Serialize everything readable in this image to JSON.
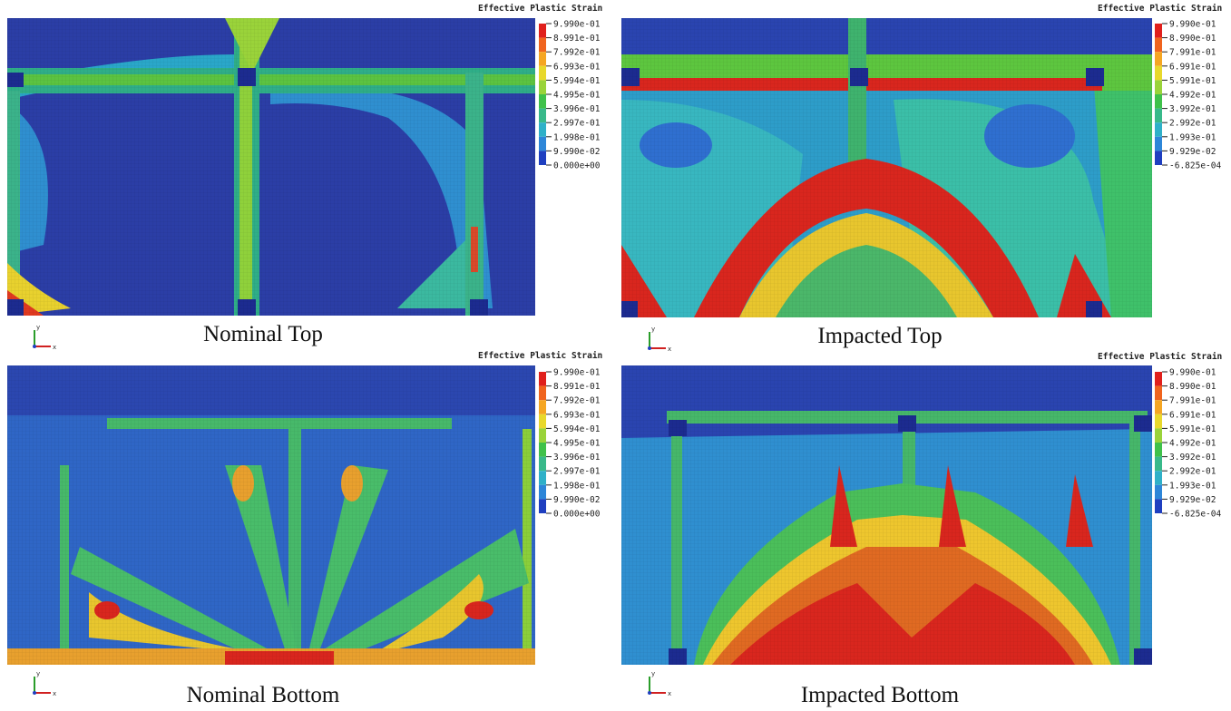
{
  "panels": [
    {
      "caption": "Nominal Top",
      "legend_title": "Effective Plastic Strain",
      "legend_labels": [
        "9.990e-01",
        "8.991e-01",
        "7.992e-01",
        "6.993e-01",
        "5.994e-01",
        "4.995e-01",
        "3.996e-01",
        "2.997e-01",
        "1.998e-01",
        "9.990e-02",
        "0.000e+00"
      ],
      "axis_labels": [
        "y",
        "x"
      ]
    },
    {
      "caption": "Impacted Top",
      "legend_title": "Effective Plastic Strain",
      "legend_labels": [
        "9.990e-01",
        "8.990e-01",
        "7.991e-01",
        "6.991e-01",
        "5.991e-01",
        "4.992e-01",
        "3.992e-01",
        "2.992e-01",
        "1.993e-01",
        "9.929e-02",
        "-6.825e-04"
      ],
      "axis_labels": [
        "y",
        "x"
      ]
    },
    {
      "caption": "Nominal Bottom",
      "legend_title": "Effective Plastic Strain",
      "legend_labels": [
        "9.990e-01",
        "8.991e-01",
        "7.992e-01",
        "6.993e-01",
        "5.994e-01",
        "4.995e-01",
        "3.996e-01",
        "2.997e-01",
        "1.998e-01",
        "9.990e-02",
        "0.000e+00"
      ],
      "axis_labels": [
        "y",
        "x"
      ]
    },
    {
      "caption": "Impacted Bottom",
      "legend_title": "Effective Plastic Strain",
      "legend_labels": [
        "9.990e-01",
        "8.990e-01",
        "7.991e-01",
        "6.991e-01",
        "5.991e-01",
        "4.992e-01",
        "3.992e-01",
        "2.992e-01",
        "1.993e-01",
        "9.929e-02",
        "-6.825e-04"
      ],
      "axis_labels": [
        "y",
        "x"
      ]
    }
  ]
}
